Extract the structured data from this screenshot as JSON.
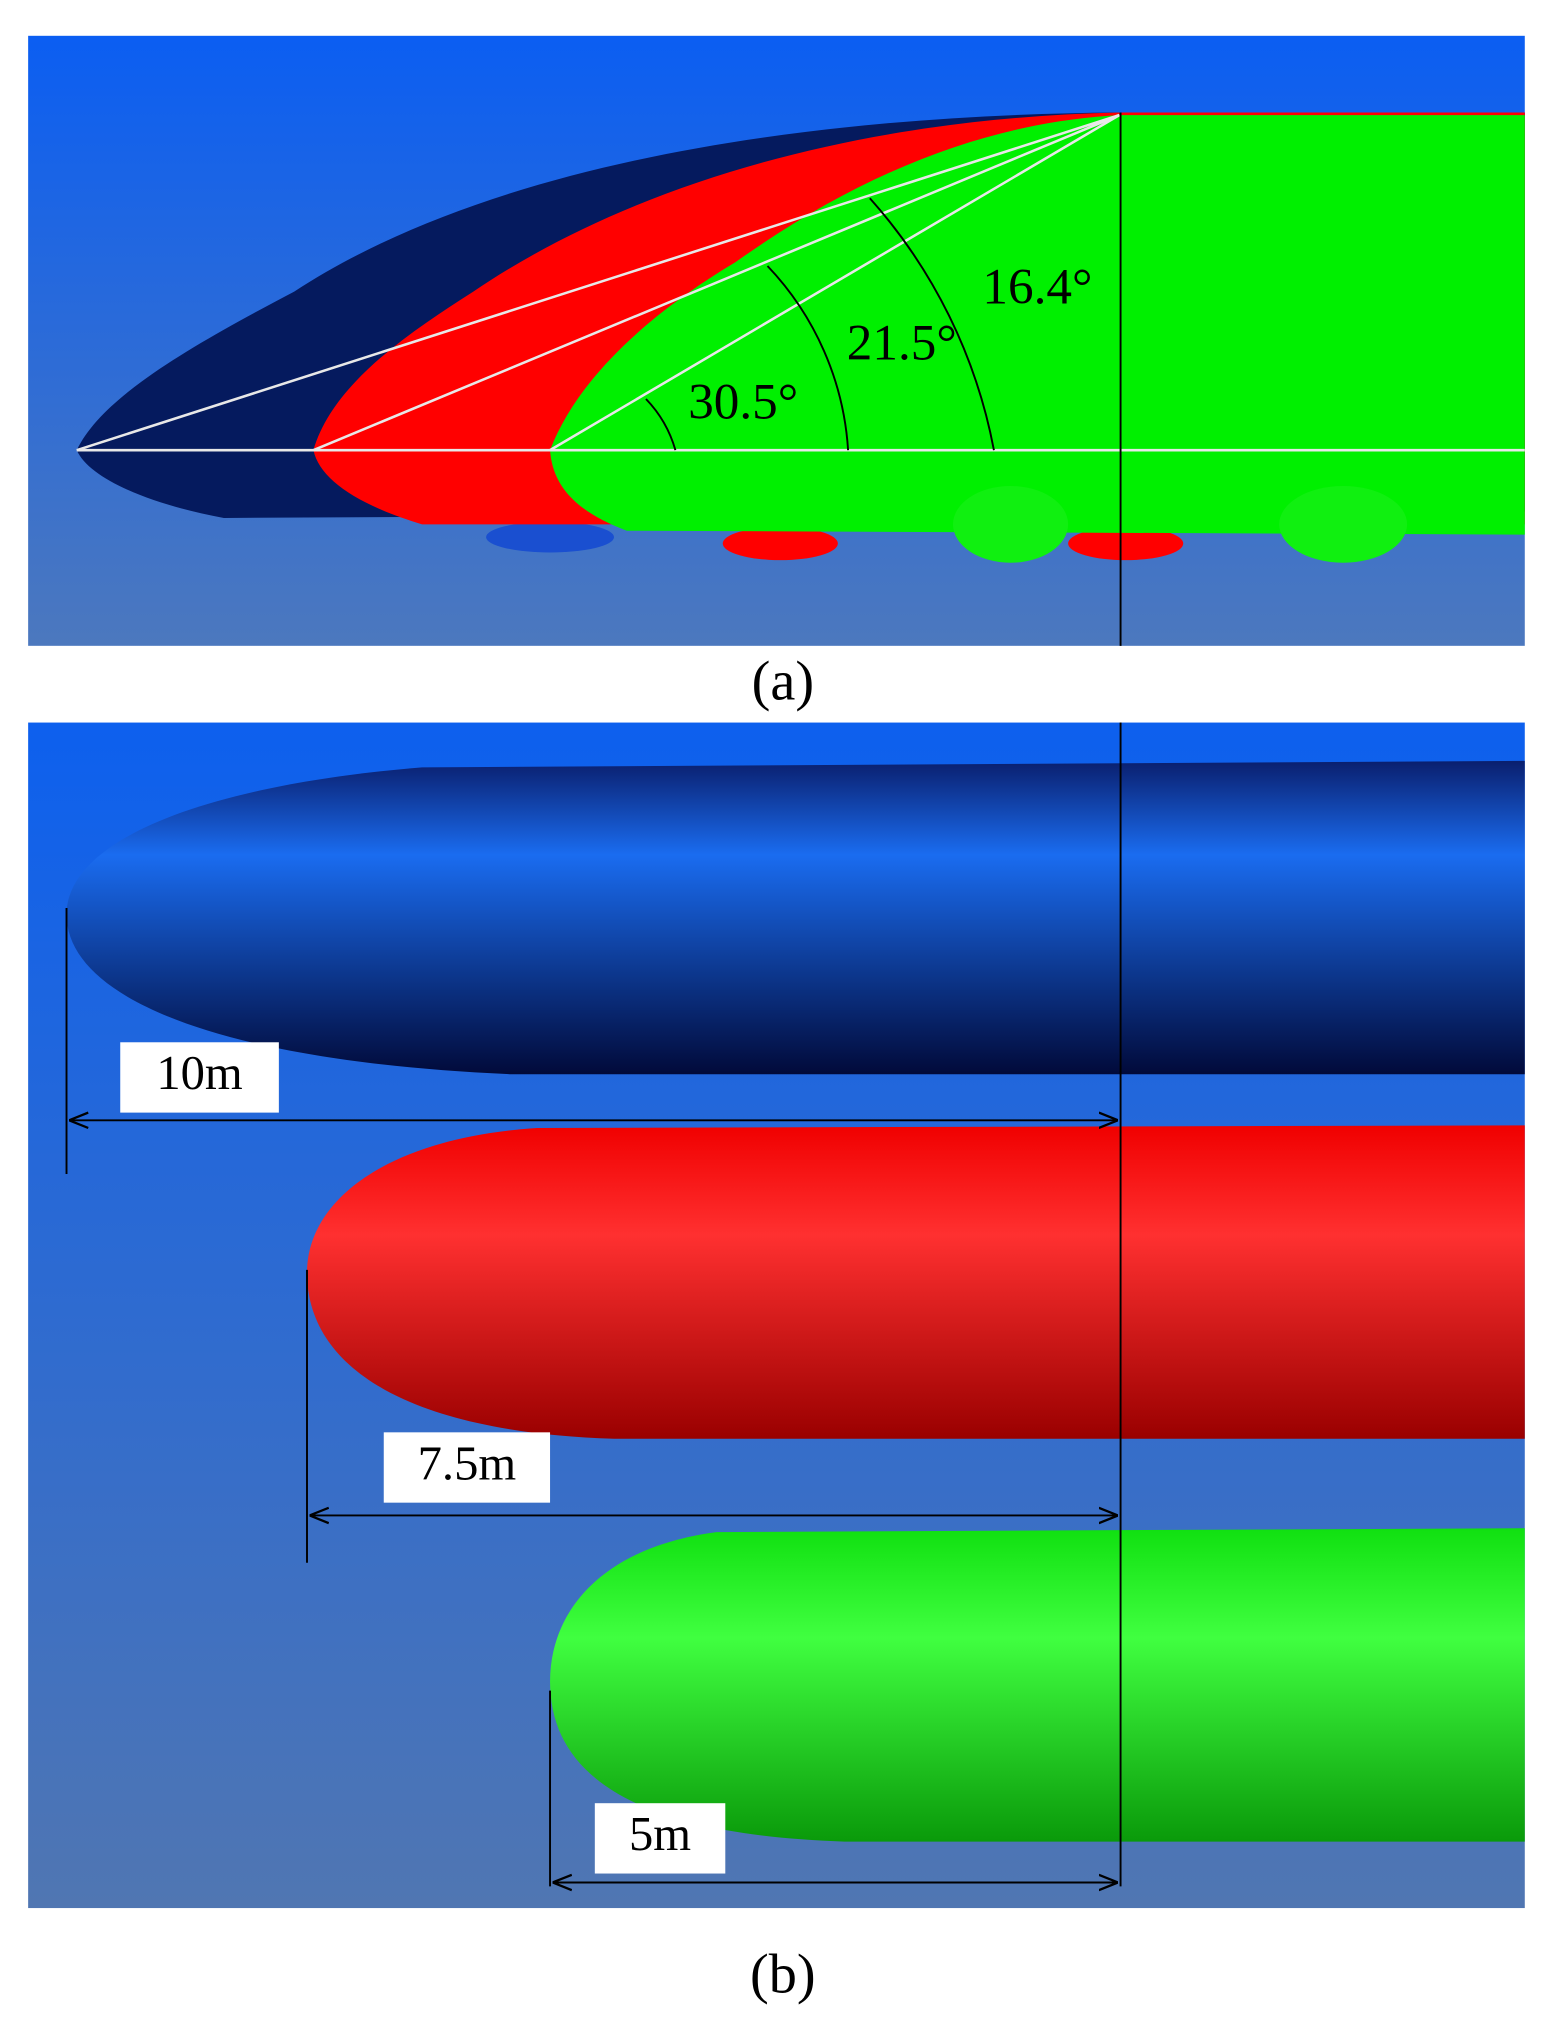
{
  "panel_a": {
    "angles": [
      "16.4°",
      "21.5°",
      "30.5°"
    ],
    "caption": "(a)"
  },
  "panel_b": {
    "lengths": [
      "10m",
      "7.5m",
      "5m"
    ],
    "caption": "(b)"
  }
}
